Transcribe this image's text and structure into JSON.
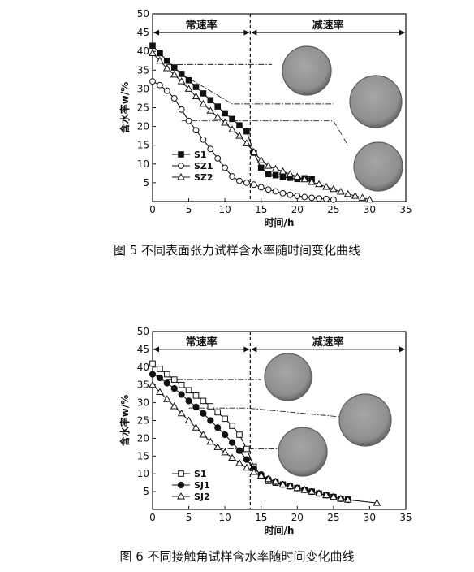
{
  "chart_data": [
    {
      "type": "line",
      "caption": "图 5  不同表面张力试样含水率随时间变化曲线",
      "xlabel": "时间/h",
      "ylabel": "含水率w/%",
      "xlim": [
        0,
        35
      ],
      "ylim": [
        0,
        50
      ],
      "xticks": [
        0,
        5,
        10,
        15,
        20,
        25,
        30,
        35
      ],
      "yticks": [
        5,
        10,
        15,
        20,
        25,
        30,
        35,
        40,
        45,
        50
      ],
      "legend_position": "bottom-left",
      "regions": {
        "constant_label": "常速率",
        "decreasing_label": "减速率",
        "boundary_x": 13.5
      },
      "series": [
        {
          "name": "S1",
          "marker": "filled-square",
          "x": [
            0,
            1,
            2,
            3,
            4,
            5,
            6,
            7,
            8,
            9,
            10,
            11,
            12,
            13,
            14,
            15,
            16,
            17,
            18,
            19,
            20,
            21,
            22
          ],
          "y": [
            41.5,
            39.5,
            37.5,
            35.7,
            34.0,
            32.3,
            30.5,
            28.8,
            27.0,
            25.3,
            23.5,
            22.0,
            20.3,
            18.7,
            13.0,
            9.0,
            7.3,
            7.0,
            6.5,
            6.3,
            6.0,
            6.2,
            6.0
          ]
        },
        {
          "name": "SZ1",
          "marker": "open-circle",
          "x": [
            0,
            1,
            2,
            3,
            4,
            5,
            6,
            7,
            8,
            9,
            10,
            11,
            12,
            13,
            14,
            15,
            16,
            17,
            18,
            19,
            20,
            21,
            22,
            23,
            24,
            25
          ],
          "y": [
            32.0,
            31.0,
            29.5,
            27.5,
            24.5,
            21.5,
            19.0,
            16.5,
            14.0,
            11.5,
            9.0,
            6.7,
            5.5,
            5.0,
            4.5,
            3.8,
            3.2,
            2.7,
            2.2,
            1.8,
            1.5,
            1.2,
            1.0,
            0.8,
            0.7,
            0.5
          ]
        },
        {
          "name": "SZ2",
          "marker": "open-triangle",
          "x": [
            0,
            1,
            2,
            3,
            4,
            5,
            6,
            7,
            8,
            9,
            10,
            11,
            12,
            13,
            14,
            15,
            16,
            17,
            18,
            19,
            20,
            21,
            22,
            23,
            24,
            25,
            26,
            27,
            28,
            29,
            30
          ],
          "y": [
            39.5,
            37.5,
            35.5,
            33.8,
            32.0,
            30.0,
            28.0,
            26.0,
            24.2,
            22.5,
            21.0,
            19.2,
            17.5,
            15.5,
            13.2,
            11.0,
            9.5,
            8.7,
            8.0,
            7.3,
            6.6,
            5.9,
            5.2,
            4.6,
            3.9,
            3.3,
            2.6,
            2.0,
            1.5,
            1.0,
            0.5
          ]
        }
      ],
      "annotations": [
        {
          "from": [
            2,
            36.5
          ],
          "to": [
            16.5,
            36.5
          ]
        },
        {
          "from": [
            4,
            34.0
          ],
          "to": [
            11,
            26.0
          ],
          "to2": [
            25,
            26.0
          ]
        },
        {
          "from": [
            4,
            21.5
          ],
          "to": [
            25,
            21.5
          ],
          "to2": [
            27,
            15.0
          ]
        }
      ]
    },
    {
      "type": "line",
      "caption": "图 6  不同接触角试样含水率随时间变化曲线",
      "xlabel": "时间/h",
      "ylabel": "含水率w/%",
      "xlim": [
        0,
        35
      ],
      "ylim": [
        0,
        50
      ],
      "xticks": [
        0,
        5,
        10,
        15,
        20,
        25,
        30,
        35
      ],
      "yticks": [
        5,
        10,
        15,
        20,
        25,
        30,
        35,
        40,
        45,
        50
      ],
      "legend_position": "bottom-left",
      "regions": {
        "constant_label": "常速率",
        "decreasing_label": "减速率",
        "boundary_x": 13.5
      },
      "series": [
        {
          "name": "S1",
          "marker": "open-square",
          "x": [
            0,
            1,
            2,
            3,
            4,
            5,
            6,
            7,
            8,
            9,
            10,
            11,
            12,
            13,
            14,
            15,
            16,
            17,
            18,
            19,
            20,
            21,
            22,
            23,
            24,
            25,
            26,
            27
          ],
          "y": [
            41.0,
            39.5,
            38.0,
            36.5,
            35.0,
            33.5,
            32.0,
            30.5,
            29.0,
            27.3,
            25.5,
            23.5,
            21.0,
            17.0,
            12.0,
            9.5,
            8.0,
            7.5,
            7.0,
            6.5,
            6.0,
            5.5,
            5.0,
            4.5,
            4.0,
            3.5,
            3.0,
            2.8
          ]
        },
        {
          "name": "SJ1",
          "marker": "filled-circle",
          "x": [
            0,
            1,
            2,
            3,
            4,
            5,
            6,
            7,
            8,
            9,
            10,
            11,
            12,
            13,
            14,
            15,
            16,
            17,
            18,
            19,
            20,
            21,
            22,
            23,
            24,
            25,
            26,
            27
          ],
          "y": [
            38.0,
            37.0,
            35.5,
            34.0,
            32.3,
            30.5,
            28.8,
            27.0,
            25.0,
            23.0,
            21.0,
            18.8,
            16.5,
            14.0,
            11.5,
            9.8,
            8.5,
            7.8,
            7.0,
            6.5,
            6.0,
            5.5,
            5.0,
            4.5,
            4.0,
            3.5,
            3.0,
            2.7
          ]
        },
        {
          "name": "SJ2",
          "marker": "open-triangle",
          "x": [
            0,
            1,
            2,
            3,
            4,
            5,
            6,
            7,
            8,
            9,
            10,
            11,
            12,
            13,
            14,
            15,
            16,
            17,
            18,
            19,
            20,
            21,
            22,
            23,
            24,
            25,
            26,
            27,
            31
          ],
          "y": [
            35.0,
            33.0,
            31.0,
            29.0,
            27.0,
            25.0,
            23.0,
            21.0,
            19.0,
            17.5,
            16.0,
            14.5,
            13.0,
            11.7,
            10.5,
            9.5,
            8.5,
            7.8,
            7.0,
            6.5,
            6.0,
            5.5,
            5.0,
            4.5,
            4.0,
            3.5,
            3.0,
            2.7,
            1.8
          ]
        }
      ],
      "annotations": [
        {
          "from": [
            2,
            36.5
          ],
          "to": [
            15,
            36.5
          ]
        },
        {
          "from": [
            5,
            28.5
          ],
          "to": [
            13,
            28.5
          ],
          "to2": [
            26,
            26.0
          ]
        },
        {
          "from": [
            9,
            17.0
          ],
          "to": [
            17.5,
            17.0
          ]
        }
      ]
    }
  ],
  "colors": {
    "line": "#111111",
    "disk_fill": "#8f8f8f",
    "disk_edge": "#5c5c5c"
  }
}
